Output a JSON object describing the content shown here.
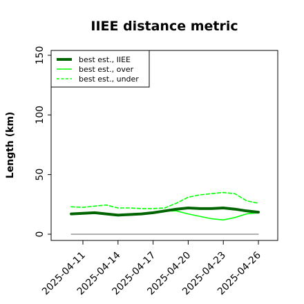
{
  "chart_data": {
    "type": "line",
    "title": "IIEE distance metric",
    "xlabel": "",
    "ylabel": "Length (km)",
    "ylim": [
      0,
      150
    ],
    "y_ticks": [
      0,
      50,
      100,
      150
    ],
    "x_ticks": [
      "2025-04-11",
      "2025-04-14",
      "2025-04-17",
      "2025-04-20",
      "2025-04-23",
      "2025-04-26"
    ],
    "x": [
      "2025-04-10",
      "2025-04-11",
      "2025-04-12",
      "2025-04-13",
      "2025-04-14",
      "2025-04-15",
      "2025-04-16",
      "2025-04-17",
      "2025-04-18",
      "2025-04-19",
      "2025-04-20",
      "2025-04-21",
      "2025-04-22",
      "2025-04-23",
      "2025-04-24",
      "2025-04-25",
      "2025-04-26"
    ],
    "legend_position": "top-left",
    "grid": false,
    "series": [
      {
        "name": "best est., IIEE",
        "color": "#006400",
        "style": "solid-thick",
        "values": [
          17,
          17.5,
          18,
          17,
          16,
          16.5,
          17,
          18,
          19.5,
          21,
          22,
          21.5,
          21.5,
          22,
          21,
          19.5,
          18.5
        ]
      },
      {
        "name": "best est., over",
        "color": "#00ff00",
        "style": "solid",
        "values": [
          17,
          18,
          18,
          17.5,
          16.5,
          17,
          17.5,
          18.5,
          19.5,
          19.5,
          17,
          15,
          13,
          12,
          14,
          17,
          18
        ]
      },
      {
        "name": "best est., under",
        "color": "#00ff00",
        "style": "dashed",
        "values": [
          23,
          22.5,
          23.5,
          24.5,
          22,
          22,
          21.5,
          21.5,
          22,
          26,
          31,
          33,
          34,
          35,
          34,
          28,
          26
        ]
      },
      {
        "name": "",
        "color": "#808080",
        "style": "solid-thin",
        "values": [
          0,
          0,
          0,
          0,
          0,
          0,
          0,
          0,
          0,
          0,
          0,
          0,
          0,
          0,
          0,
          0,
          0
        ]
      }
    ]
  }
}
